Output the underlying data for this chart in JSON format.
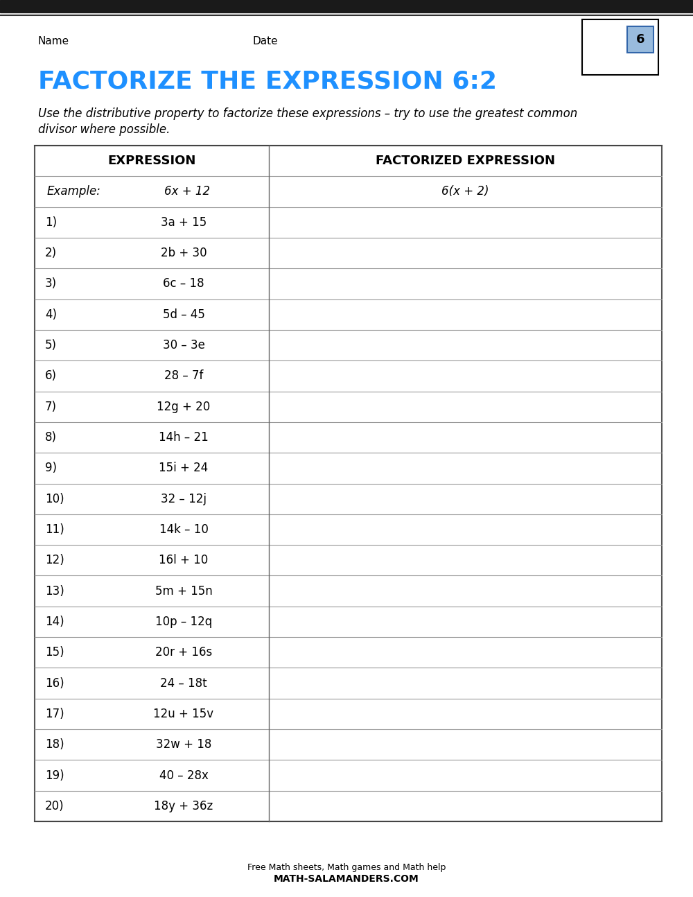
{
  "title": "FACTORIZE THE EXPRESSION 6:2",
  "title_color": "#1E90FF",
  "subtitle_line1": "Use the distributive property to factorize these expressions – try to use the greatest common",
  "subtitle_line2": "divisor where possible.",
  "name_label": "Name",
  "date_label": "Date",
  "col1_header": "EXPRESSION",
  "col2_header": "FACTORIZED EXPRESSION",
  "example_label": "Example:",
  "example_expr": "6x + 12",
  "example_factored": "6(x + 2)",
  "problems": [
    {
      "num": "1)",
      "expr": "3a + 15"
    },
    {
      "num": "2)",
      "expr": "2b + 30"
    },
    {
      "num": "3)",
      "expr": "6c – 18"
    },
    {
      "num": "4)",
      "expr": "5d – 45"
    },
    {
      "num": "5)",
      "expr": "30 – 3e"
    },
    {
      "num": "6)",
      "expr": "28 – 7f"
    },
    {
      "num": "7)",
      "expr": "12g + 20"
    },
    {
      "num": "8)",
      "expr": "14h – 21"
    },
    {
      "num": "9)",
      "expr": "15i + 24"
    },
    {
      "num": "10)",
      "expr": "32 – 12j"
    },
    {
      "num": "11)",
      "expr": "14k – 10"
    },
    {
      "num": "12)",
      "expr": "16l + 10"
    },
    {
      "num": "13)",
      "expr": "5m + 15n"
    },
    {
      "num": "14)",
      "expr": "10p – 12q"
    },
    {
      "num": "15)",
      "expr": "20r + 16s"
    },
    {
      "num": "16)",
      "expr": "24 – 18t"
    },
    {
      "num": "17)",
      "expr": "12u + 15v"
    },
    {
      "num": "18)",
      "expr": "32w + 18"
    },
    {
      "num": "19)",
      "expr": "40 – 28x"
    },
    {
      "num": "20)",
      "expr": "18y + 36z"
    }
  ],
  "footer_line1": "Free Math sheets, Math games and Math help",
  "footer_line2": "MATH-SALAMANDERS.COM",
  "background_color": "#FFFFFF",
  "top_bar_color": "#1a1a1a",
  "table_line_color": "#888888",
  "table_outer_color": "#555555"
}
